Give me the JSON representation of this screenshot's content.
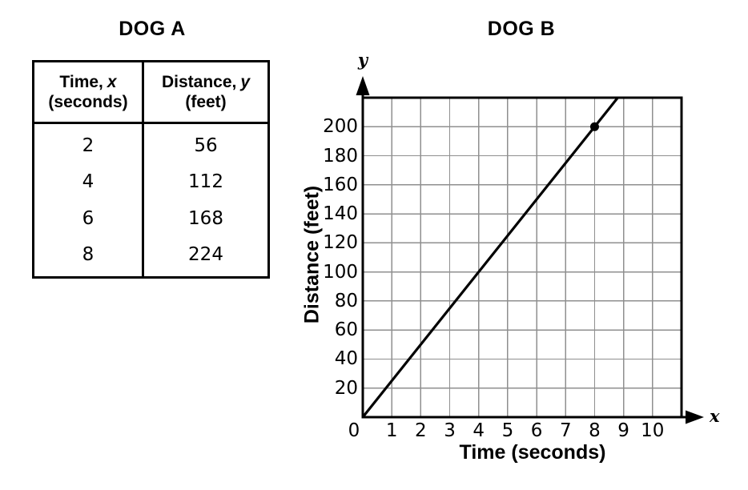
{
  "dog_a": {
    "title": "DOG A",
    "header": {
      "time_label": "Time,",
      "time_var": "x",
      "time_unit": "(seconds)",
      "distance_label": "Distance,",
      "distance_var": "y",
      "distance_unit": "(feet)"
    },
    "rows": [
      [
        "2",
        "56"
      ],
      [
        "4",
        "112"
      ],
      [
        "6",
        "168"
      ],
      [
        "8",
        "224"
      ]
    ]
  },
  "chart_data": {
    "type": "line",
    "title": "DOG B",
    "xlabel": "Time (seconds)",
    "ylabel": "Distance (feet)",
    "x_axis_letter": "x",
    "y_axis_letter": "y",
    "xlim": [
      0,
      11
    ],
    "ylim": [
      0,
      220
    ],
    "x_ticks": [
      0,
      1,
      2,
      3,
      4,
      5,
      6,
      7,
      8,
      9,
      10
    ],
    "y_ticks": [
      20,
      40,
      60,
      80,
      100,
      120,
      140,
      160,
      180,
      200
    ],
    "grid": true,
    "legend": "none",
    "series": [
      {
        "name": "Dog B distance",
        "description": "line through origin",
        "slope_feet_per_second": 25,
        "points": [
          [
            0,
            0
          ],
          [
            8,
            200
          ]
        ]
      }
    ],
    "marked_point": {
      "x": 8,
      "y": 200
    },
    "colors": {
      "ink": "#000000",
      "grid": "#8f8f8f",
      "background": "#ffffff"
    }
  }
}
